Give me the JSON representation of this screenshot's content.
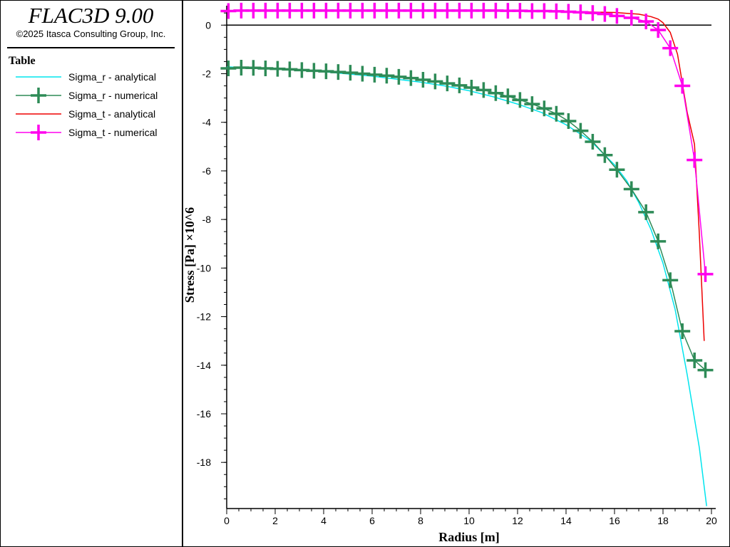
{
  "app": {
    "title": "FLAC3D 9.00",
    "copyright": "©2025 Itasca Consulting Group, Inc."
  },
  "legend": {
    "title": "Table",
    "items": [
      {
        "label": "Sigma_r - analytical",
        "color": "#00e5ee",
        "marker": "none"
      },
      {
        "label": "Sigma_r - numerical",
        "color": "#2e8b57",
        "marker": "plus"
      },
      {
        "label": "Sigma_t - analytical",
        "color": "#ee0000",
        "marker": "none"
      },
      {
        "label": "Sigma_t - numerical",
        "color": "#ff00ee",
        "marker": "plus"
      }
    ]
  },
  "chart_data": {
    "type": "line",
    "xlabel": "Radius [m]",
    "ylabel": "Stress [Pa] ×10^6",
    "xlim": [
      0,
      20
    ],
    "ylim": [
      -19.9,
      0.8
    ],
    "xticks": [
      0,
      2,
      4,
      6,
      8,
      10,
      12,
      14,
      16,
      18,
      20
    ],
    "yticks": [
      0,
      -2,
      -4,
      -6,
      -8,
      -10,
      -12,
      -14,
      -16,
      -18
    ],
    "grid": false,
    "zero_line": true,
    "series": [
      {
        "name": "Sigma_r - analytical",
        "color": "#00e5ee",
        "marker": "none",
        "x": [
          0,
          2,
          4,
          6,
          8,
          9,
          10,
          11,
          12,
          13,
          14,
          15,
          16,
          16.5,
          17,
          17.5,
          18,
          18.5,
          19,
          19.5,
          19.8
        ],
        "y": [
          -1.72,
          -1.8,
          -1.92,
          -2.1,
          -2.35,
          -2.5,
          -2.7,
          -2.95,
          -3.25,
          -3.6,
          -4.1,
          -4.75,
          -5.75,
          -6.4,
          -7.3,
          -8.4,
          -9.8,
          -11.7,
          -14.4,
          -17.4,
          -19.8
        ]
      },
      {
        "name": "Sigma_r - numerical",
        "color": "#2e8b57",
        "marker": "plus",
        "x": [
          0.07,
          0.6,
          1.1,
          1.6,
          2.1,
          2.6,
          3.1,
          3.6,
          4.1,
          4.6,
          5.1,
          5.6,
          6.1,
          6.6,
          7.1,
          7.6,
          8.1,
          8.6,
          9.1,
          9.6,
          10.1,
          10.6,
          11.1,
          11.6,
          12.1,
          12.6,
          13.1,
          13.6,
          14.1,
          14.6,
          15.1,
          15.6,
          16.1,
          16.7,
          17.3,
          17.8,
          18.3,
          18.8,
          19.3,
          19.75
        ],
        "y": [
          -1.78,
          -1.75,
          -1.76,
          -1.78,
          -1.8,
          -1.82,
          -1.85,
          -1.88,
          -1.9,
          -1.93,
          -1.96,
          -2.0,
          -2.04,
          -2.08,
          -2.13,
          -2.18,
          -2.25,
          -2.32,
          -2.4,
          -2.48,
          -2.57,
          -2.67,
          -2.8,
          -2.93,
          -3.08,
          -3.25,
          -3.43,
          -3.65,
          -3.95,
          -4.35,
          -4.8,
          -5.35,
          -5.95,
          -6.75,
          -7.7,
          -8.9,
          -10.5,
          -12.6,
          -13.8,
          -14.2
        ]
      },
      {
        "name": "Sigma_t - analytical",
        "color": "#ee0000",
        "marker": "none",
        "x": [
          0,
          4,
          8,
          12,
          14,
          16,
          17,
          17.5,
          17.8,
          18,
          18.3,
          18.6,
          18.8,
          19.0,
          19.3,
          19.5,
          19.7
        ],
        "y": [
          0.6,
          0.6,
          0.6,
          0.58,
          0.56,
          0.52,
          0.45,
          0.35,
          0.25,
          0.1,
          -0.3,
          -1.2,
          -2.4,
          -3.6,
          -4.9,
          -8.6,
          -13.0
        ]
      },
      {
        "name": "Sigma_t - numerical",
        "color": "#ff00ee",
        "marker": "plus",
        "x": [
          0.07,
          0.6,
          1.1,
          1.6,
          2.1,
          2.6,
          3.1,
          3.6,
          4.1,
          4.6,
          5.1,
          5.6,
          6.1,
          6.6,
          7.1,
          7.6,
          8.1,
          8.6,
          9.1,
          9.6,
          10.1,
          10.6,
          11.1,
          11.6,
          12.1,
          12.6,
          13.1,
          13.6,
          14.1,
          14.6,
          15.1,
          15.6,
          16.1,
          16.7,
          17.3,
          17.8,
          18.3,
          18.8,
          19.3,
          19.75
        ],
        "y": [
          0.58,
          0.6,
          0.6,
          0.6,
          0.6,
          0.6,
          0.6,
          0.6,
          0.6,
          0.6,
          0.6,
          0.6,
          0.6,
          0.6,
          0.6,
          0.6,
          0.6,
          0.6,
          0.6,
          0.6,
          0.6,
          0.6,
          0.6,
          0.59,
          0.59,
          0.58,
          0.58,
          0.57,
          0.55,
          0.53,
          0.5,
          0.46,
          0.38,
          0.3,
          0.15,
          -0.2,
          -0.95,
          -2.5,
          -5.55,
          -10.25
        ]
      }
    ]
  }
}
